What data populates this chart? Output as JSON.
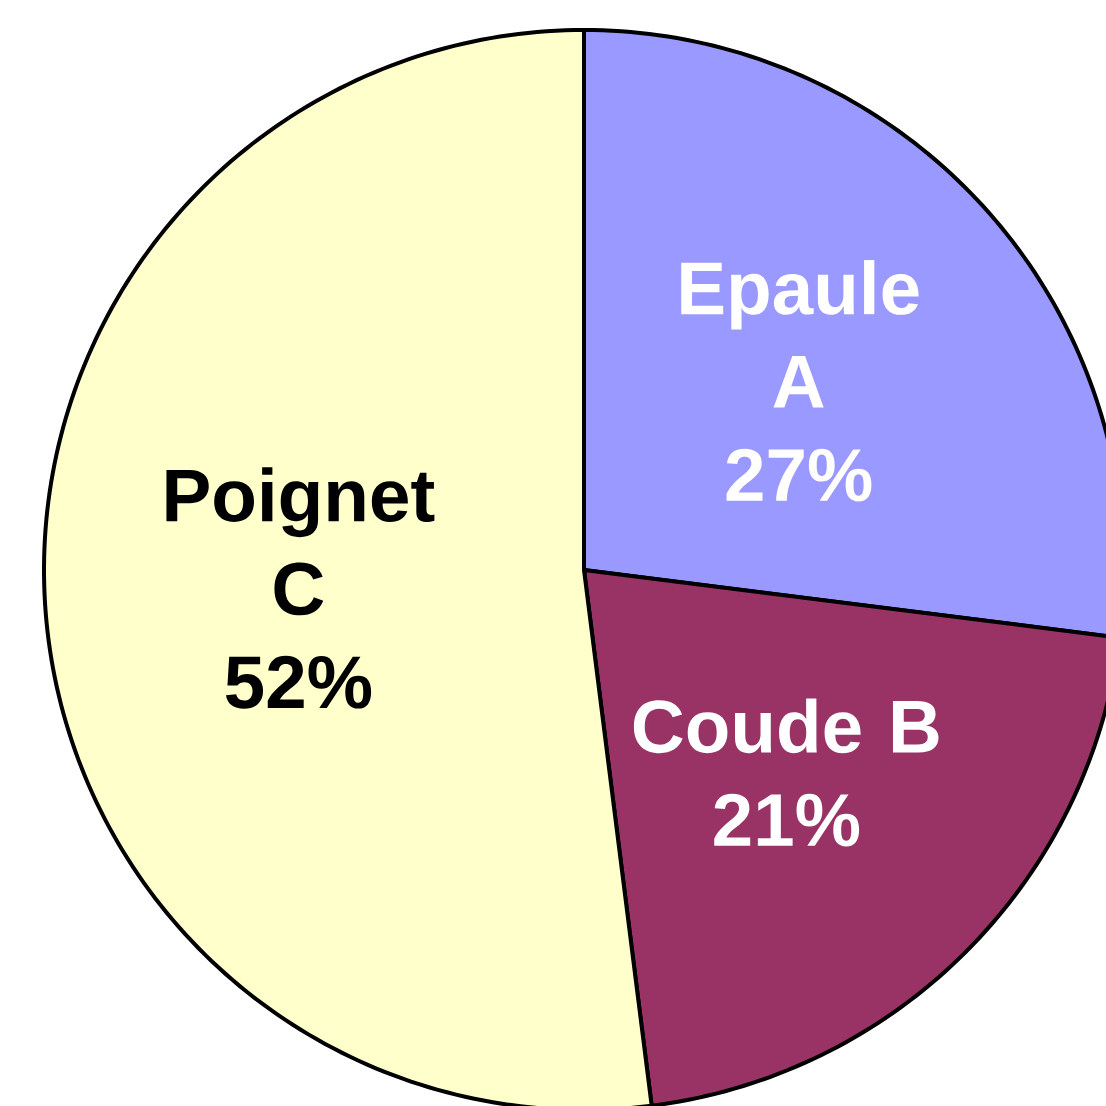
{
  "chart_data": {
    "type": "pie",
    "categories": [
      "Epaule A",
      "Coude B",
      "Poignet C"
    ],
    "values": [
      27,
      21,
      52
    ],
    "value_labels": [
      "27%",
      "21%",
      "52%"
    ],
    "colors": [
      "#9999ff",
      "#993366",
      "#ffffcc"
    ]
  }
}
